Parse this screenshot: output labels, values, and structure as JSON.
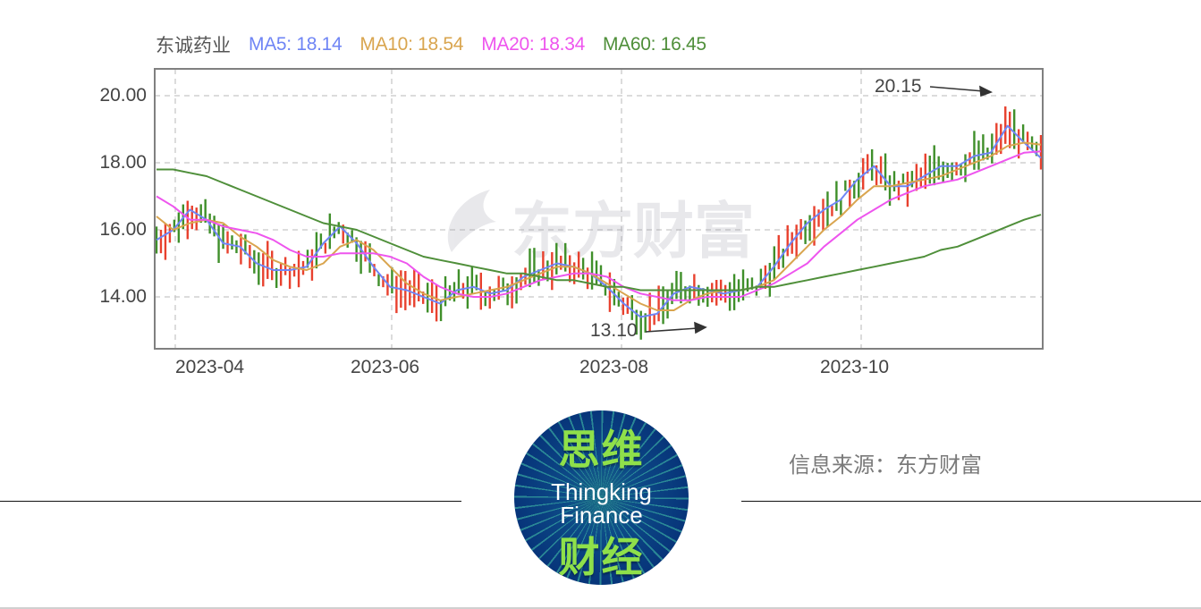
{
  "legend": {
    "stock_name": "东诚药业",
    "ma5": {
      "label": "MA5: 18.14",
      "color": "#6f85f5"
    },
    "ma10": {
      "label": "MA10: 18.54",
      "color": "#d9a54f"
    },
    "ma20": {
      "label": "MA20: 18.34",
      "color": "#ee55ee"
    },
    "ma60": {
      "label": "MA60: 16.45",
      "color": "#4f8f3a"
    }
  },
  "watermark": "东方财富",
  "annotations": {
    "high": "20.15",
    "low": "13.10"
  },
  "source_text": "信息来源：东方财富",
  "logo": {
    "cn_top": "思维",
    "en_line1": "Thingking",
    "en_line2": "Finance",
    "cn_bottom": "财经"
  },
  "colors": {
    "up": "#e8412e",
    "down": "#3f8f2a",
    "grid": "#c8c8c8",
    "frame": "#808080"
  },
  "chart_data": {
    "type": "line",
    "subtype": "candlestick_with_moving_averages",
    "title": "东诚药业",
    "xlabel": "",
    "ylabel": "",
    "ylim": [
      12.5,
      20.8
    ],
    "yticks": [
      "14.00",
      "16.00",
      "18.00",
      "20.00"
    ],
    "xticks": [
      "2023-04",
      "2023-06",
      "2023-08",
      "2023-10"
    ],
    "grid": true,
    "legend_position": "top",
    "latest_ma": {
      "MA5": 18.14,
      "MA10": 18.54,
      "MA20": 18.34,
      "MA60": 16.45
    },
    "extremes": {
      "high": 20.15,
      "low": 13.1
    },
    "x": [
      0,
      5,
      10,
      15,
      20,
      25,
      30,
      35,
      40,
      45,
      50,
      55,
      60,
      65,
      70,
      75,
      80,
      85,
      90,
      95,
      100,
      105,
      110,
      115,
      120,
      125,
      130,
      135,
      140,
      145,
      150,
      155,
      160,
      165,
      170,
      175,
      180,
      185,
      190,
      195,
      200,
      205,
      210,
      215,
      220,
      225,
      230,
      235,
      240,
      245,
      250,
      255,
      260,
      265
    ],
    "series": [
      {
        "name": "MA5",
        "values": [
          15.7,
          16.0,
          16.6,
          16.3,
          15.6,
          15.5,
          15.0,
          14.8,
          14.8,
          14.9,
          15.6,
          16.1,
          15.6,
          14.9,
          14.3,
          14.2,
          14.0,
          13.8,
          14.2,
          14.3,
          14.1,
          14.2,
          14.6,
          14.8,
          15.0,
          14.9,
          14.7,
          14.3,
          13.8,
          13.4,
          13.5,
          14.1,
          14.3,
          14.2,
          14.1,
          14.2,
          14.3,
          14.9,
          15.6,
          16.2,
          16.6,
          16.9,
          17.5,
          17.9,
          17.3,
          17.3,
          17.6,
          17.9,
          17.9,
          18.2,
          18.3,
          19.1,
          18.6,
          18.14
        ]
      },
      {
        "name": "MA10",
        "values": [
          16.4,
          16.0,
          16.2,
          16.3,
          16.2,
          15.8,
          15.5,
          15.1,
          14.9,
          14.8,
          15.0,
          15.5,
          15.7,
          15.4,
          14.9,
          14.4,
          14.1,
          13.9,
          14.0,
          14.1,
          14.2,
          14.3,
          14.5,
          14.7,
          14.9,
          14.9,
          14.7,
          14.4,
          14.1,
          13.8,
          13.6,
          13.6,
          13.9,
          14.1,
          14.2,
          14.2,
          14.3,
          14.5,
          15.0,
          15.5,
          16.0,
          16.4,
          16.9,
          17.3,
          17.3,
          17.4,
          17.5,
          17.6,
          17.8,
          18.0,
          18.2,
          18.5,
          18.6,
          18.54
        ]
      },
      {
        "name": "MA20",
        "values": [
          17.0,
          16.7,
          16.3,
          16.3,
          16.1,
          16.0,
          15.9,
          15.7,
          15.4,
          15.2,
          15.2,
          15.3,
          15.3,
          15.3,
          15.2,
          15.0,
          14.6,
          14.3,
          14.1,
          14.0,
          14.0,
          14.1,
          14.3,
          14.5,
          14.6,
          14.7,
          14.7,
          14.6,
          14.3,
          14.1,
          14.0,
          13.9,
          13.9,
          14.0,
          14.0,
          14.0,
          14.2,
          14.4,
          14.7,
          15.0,
          15.5,
          15.9,
          16.3,
          16.6,
          16.9,
          17.1,
          17.3,
          17.4,
          17.5,
          17.7,
          17.9,
          18.1,
          18.3,
          18.34
        ]
      },
      {
        "name": "MA60",
        "values": [
          17.8,
          17.8,
          17.7,
          17.6,
          17.4,
          17.2,
          17.0,
          16.8,
          16.6,
          16.4,
          16.2,
          16.1,
          16.0,
          15.8,
          15.6,
          15.4,
          15.2,
          15.1,
          15.0,
          14.9,
          14.8,
          14.7,
          14.7,
          14.6,
          14.5,
          14.5,
          14.4,
          14.3,
          14.3,
          14.2,
          14.2,
          14.2,
          14.2,
          14.2,
          14.2,
          14.2,
          14.3,
          14.3,
          14.4,
          14.5,
          14.6,
          14.7,
          14.8,
          14.9,
          15.0,
          15.1,
          15.2,
          15.4,
          15.5,
          15.7,
          15.9,
          16.1,
          16.3,
          16.45
        ]
      }
    ]
  }
}
